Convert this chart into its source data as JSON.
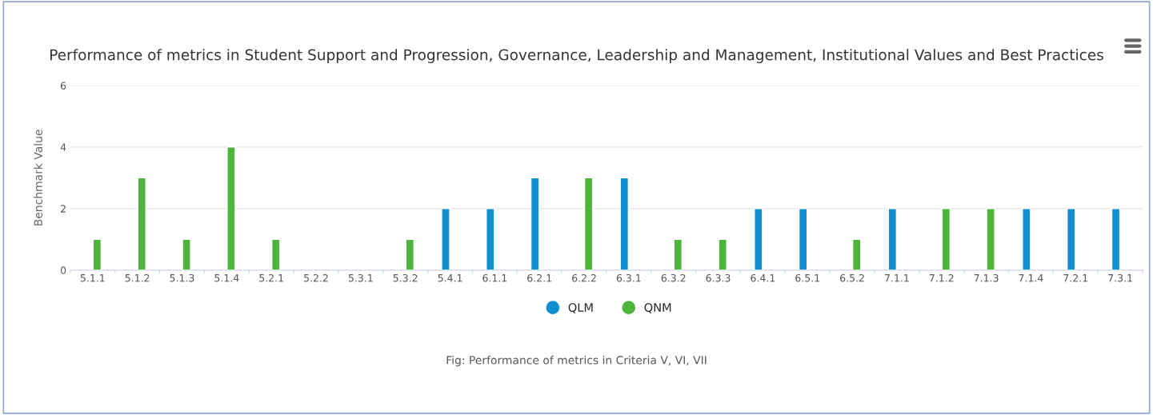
{
  "chart_data": {
    "type": "bar",
    "title": "Performance of metrics in Student Support and Progression, Governance, Leadership and Management, Institutional Values and Best Practices",
    "ylabel": "Benchmark Value",
    "categories": [
      "5.1.1",
      "5.1.2",
      "5.1.3",
      "5.1.4",
      "5.2.1",
      "5.2.2",
      "5.3.1",
      "5.3.2",
      "5.4.1",
      "6.1.1",
      "6.2.1",
      "6.2.2",
      "6.3.1",
      "6.3.2",
      "6.3.3",
      "6.4.1",
      "6.5.1",
      "6.5.2",
      "7.1.1",
      "7.1.2",
      "7.1.3",
      "7.1.4",
      "7.2.1",
      "7.3.1"
    ],
    "series": [
      {
        "name": "QLM",
        "color": "#0f8fcf",
        "values": [
          null,
          null,
          null,
          null,
          null,
          null,
          null,
          null,
          2,
          2,
          3,
          null,
          3,
          null,
          null,
          2,
          2,
          null,
          2,
          null,
          null,
          2,
          2,
          2
        ]
      },
      {
        "name": "QNM",
        "color": "#4db53c",
        "values": [
          1,
          3,
          1,
          4,
          1,
          null,
          null,
          1,
          null,
          null,
          null,
          3,
          null,
          1,
          1,
          null,
          null,
          1,
          null,
          2,
          2,
          null,
          null,
          null
        ]
      }
    ],
    "ylim": [
      0,
      6
    ],
    "yticks": [
      0,
      2,
      4,
      6
    ],
    "grid": "y",
    "legend": "bottom",
    "annotations": [
      "Fig: Performance of metrics in Criteria V, VI, VII"
    ]
  }
}
